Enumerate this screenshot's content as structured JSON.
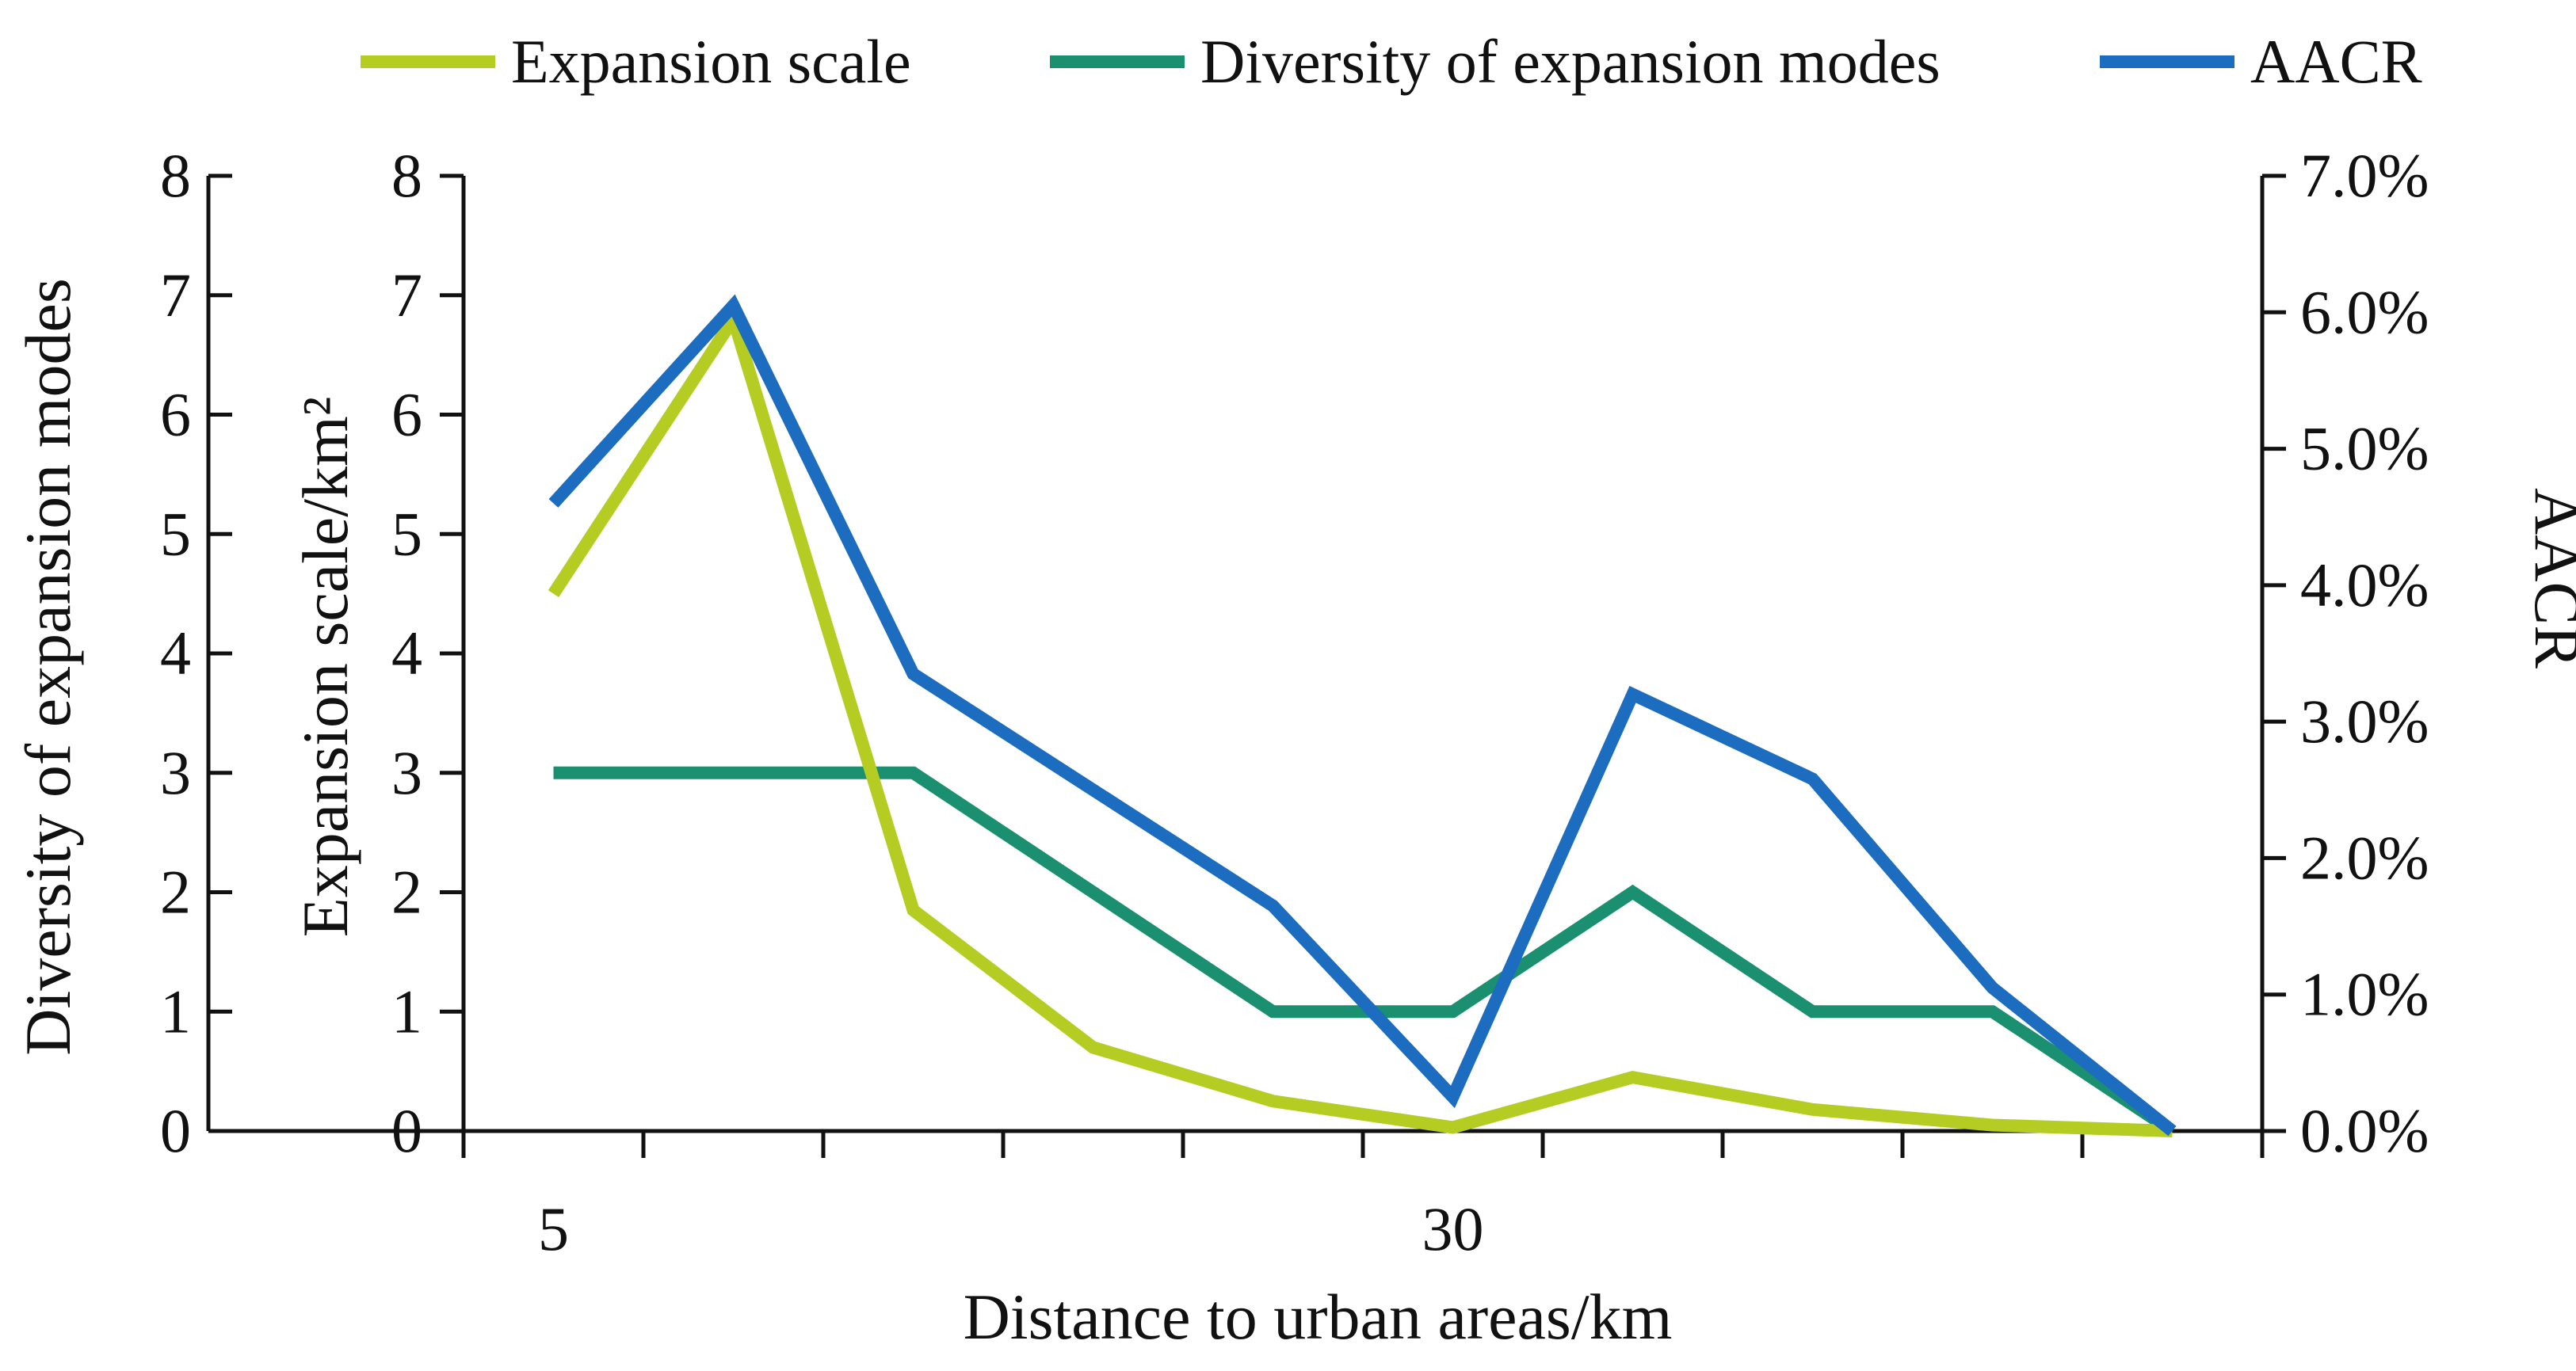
{
  "chart_data": {
    "type": "line",
    "xlabel": "Distance to urban areas/km",
    "x": [
      5,
      10,
      15,
      20,
      25,
      30,
      35,
      40,
      45,
      50
    ],
    "x_tick_labels": [
      {
        "x": 5,
        "label": "5"
      },
      {
        "x": 30,
        "label": "30"
      }
    ],
    "x_range": [
      2.5,
      52.5
    ],
    "axes": {
      "left_outer": {
        "label": "Diversity of expansion modes",
        "range": [
          0,
          8
        ],
        "ticks": [
          "0",
          "1",
          "2",
          "3",
          "4",
          "5",
          "6",
          "7",
          "8"
        ]
      },
      "left_inner": {
        "label": "Expansion scale/km²",
        "range": [
          0,
          8
        ],
        "ticks": [
          "0",
          "1",
          "2",
          "3",
          "4",
          "5",
          "6",
          "7",
          "8"
        ]
      },
      "right": {
        "label": "AACR",
        "range": [
          0,
          0.07
        ],
        "ticks": [
          "0.0%",
          "1.0%",
          "2.0%",
          "3.0%",
          "4.0%",
          "5.0%",
          "6.0%",
          "7.0%"
        ]
      }
    },
    "series": [
      {
        "name": "Expansion scale",
        "axis": "left_inner",
        "color": "#b5cd22",
        "values": [
          4.5,
          6.8,
          1.85,
          0.7,
          0.25,
          0.03,
          0.45,
          0.18,
          0.05,
          0.0
        ]
      },
      {
        "name": "Diversity of expansion modes",
        "axis": "left_outer",
        "color": "#1b9070",
        "values": [
          3,
          3,
          3,
          2,
          1,
          1,
          2,
          1,
          1,
          0
        ]
      },
      {
        "name": "AACR",
        "axis": "right",
        "color": "#1c6cc0",
        "values": [
          0.046,
          0.0605,
          0.0335,
          0.025,
          0.0165,
          0.0025,
          0.032,
          0.0258,
          0.0105,
          0.0
        ]
      }
    ],
    "legend_position": "top",
    "grid": false
  }
}
